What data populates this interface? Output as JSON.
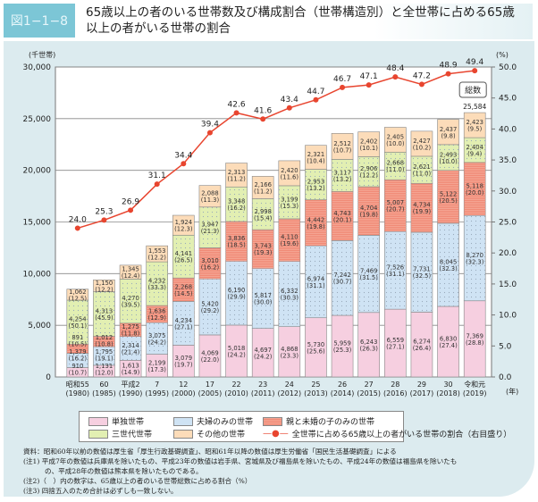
{
  "figure_label": "図1−1−8",
  "title": "65歳以上の者のいる世帯数及び構成割合（世帯構造別）と全世帯に占める65歳以上の者がいる世帯の割合",
  "chart_data": {
    "type": "bar",
    "stacked": true,
    "left_axis_unit": "(千世帯)",
    "right_axis_unit": "(%)",
    "x_unit": "(年)",
    "ylim": [
      0,
      30000
    ],
    "y_ticks": [
      "0",
      "5,000",
      "10,000",
      "15,000",
      "20,000",
      "25,000",
      "30,000"
    ],
    "y2lim": [
      0,
      50
    ],
    "y2_ticks": [
      "0.0",
      "5.0",
      "10.0",
      "15.0",
      "20.0",
      "25.0",
      "30.0",
      "35.0",
      "40.0",
      "45.0",
      "50.0"
    ],
    "grid": true,
    "categories": [
      [
        "昭和55",
        "(1980)"
      ],
      [
        "60",
        "(1985)"
      ],
      [
        "平成2",
        "(1990)"
      ],
      [
        "7",
        "(1995)"
      ],
      [
        "12",
        "(2000)"
      ],
      [
        "17",
        "(2005)"
      ],
      [
        "22",
        "(2010)"
      ],
      [
        "23",
        "(2011)"
      ],
      [
        "24",
        "(2012)"
      ],
      [
        "25",
        "(2013)"
      ],
      [
        "26",
        "(2014)"
      ],
      [
        "27",
        "(2015)"
      ],
      [
        "28",
        "(2016)"
      ],
      [
        "29",
        "(2017)"
      ],
      [
        "30",
        "(2018)"
      ],
      [
        "令和元",
        "(2019)"
      ]
    ],
    "series": [
      {
        "name": "単独世帯",
        "color": "#f6cfe0",
        "pattern": "none",
        "values": [
          910,
          1131,
          1613,
          2199,
          3079,
          4069,
          5018,
          4697,
          4868,
          5730,
          5959,
          6243,
          6559,
          6274,
          6830,
          7369
        ],
        "percents": [
          "10.7",
          "12.0",
          "14.9",
          "17.3",
          "19.7",
          "22.0",
          "24.2",
          "24.2",
          "23.3",
          "25.6",
          "25.3",
          "26.3",
          "27.1",
          "26.4",
          "27.4",
          "28.8"
        ]
      },
      {
        "name": "夫婦のみの世帯",
        "color": "#cfe3f4",
        "pattern": "dots",
        "values": [
          1379,
          1795,
          2314,
          3075,
          4234,
          5420,
          6190,
          5817,
          6332,
          6974,
          7242,
          7469,
          7526,
          7731,
          8045,
          8270
        ],
        "percents": [
          "16.2",
          "19.1",
          "21.4",
          "24.2",
          "27.1",
          "29.2",
          "29.9",
          "30.0",
          "30.3",
          "31.1",
          "30.7",
          "31.5",
          "31.1",
          "32.5",
          "32.3",
          "32.3"
        ]
      },
      {
        "name": "親と未婚の子のみの世帯",
        "color": "#f5a593",
        "pattern": "stripes",
        "values": [
          891,
          1012,
          1275,
          1636,
          2268,
          3010,
          3836,
          3743,
          4110,
          4442,
          4743,
          4704,
          5007,
          4734,
          5122,
          5118
        ],
        "percents": [
          "10.5",
          "10.8",
          "11.8",
          "12.9",
          "14.5",
          "16.2",
          "18.5",
          "19.3",
          "19.6",
          "19.8",
          "20.1",
          "19.8",
          "20.7",
          "19.9",
          "20.5",
          "20.0"
        ]
      },
      {
        "name": "三世代世帯",
        "color": "#e2efb2",
        "pattern": "dots",
        "values": [
          4254,
          4313,
          4270,
          4232,
          4141,
          3947,
          3348,
          2998,
          3199,
          2953,
          3117,
          2906,
          2668,
          2621,
          2493,
          2404
        ],
        "percents": [
          "50.1",
          "45.9",
          "39.5",
          "33.3",
          "26.5",
          "21.3",
          "16.2",
          "15.4",
          "15.3",
          "13.2",
          "13.2",
          "12.2",
          "11.0",
          "11.0",
          "10.0",
          "9.4"
        ]
      },
      {
        "name": "その他の世帯",
        "color": "#fcdcb9",
        "pattern": "none",
        "values": [
          1062,
          1150,
          1345,
          1553,
          1924,
          2088,
          2313,
          2166,
          2420,
          2321,
          2512,
          2402,
          2405,
          2427,
          2437,
          2423
        ],
        "percents": [
          "12.5",
          "12.2",
          "12.4",
          "12.2",
          "12.3",
          "11.3",
          "11.2",
          "11.2",
          "11.6",
          "10.4",
          "10.7",
          "10.1",
          "10.0",
          "10.2",
          "9.8",
          "9.5"
        ]
      }
    ],
    "line": {
      "name": "全世帯に占める65歳以上の者がいる世帯の割合（右目盛り）",
      "color": "#e8452f",
      "axis": "right",
      "values": [
        24.0,
        25.3,
        26.9,
        31.1,
        34.4,
        39.4,
        42.6,
        41.6,
        43.4,
        44.7,
        46.7,
        47.1,
        48.4,
        47.2,
        48.9,
        49.4
      ],
      "labels": [
        "24.0",
        "25.3",
        "26.9",
        "31.1",
        "34.4",
        "39.4",
        "42.6",
        "41.6",
        "43.4",
        "44.7",
        "46.7",
        "47.1",
        "48.4",
        "47.2",
        "48.9",
        "49.4"
      ]
    },
    "callout": {
      "label": "総数",
      "value": "25,584"
    },
    "legend_position": "bottom"
  },
  "notes": [
    "資料：昭和60年以前の数値は厚生省「厚生行政基礎調査」、昭和61年以降の数値は厚生労働省「国民生活基礎調査」による",
    "(注1) 平成7年の数値は兵庫県を除いたもの、平成23年の数値は岩手県、宮城県及び福島県を除いたもの、平成24年の数値は福島県を除いたも",
    "の、平成28年の数値は熊本県を除いたものである。",
    "(注2)（　）内の数字は、65歳以上の者のいる世帯総数に占める割合（%）",
    "(注3) 四捨五入のため合計は必ずしも一致しない。"
  ]
}
